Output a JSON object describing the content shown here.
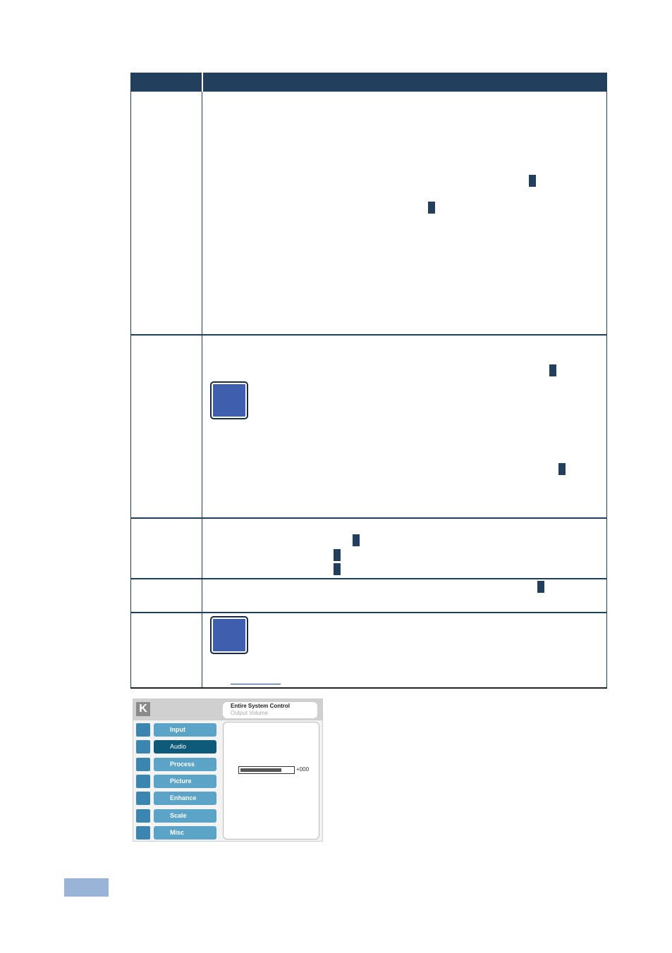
{
  "osd": {
    "title": "Entire System Control",
    "subtitle": "Output Volume",
    "logo": "K",
    "menu": [
      "Input",
      "Audio",
      "Process",
      "Picture",
      "Enhance",
      "Scale",
      "Misc"
    ],
    "selected": "Audio",
    "volume_label": "+000"
  }
}
